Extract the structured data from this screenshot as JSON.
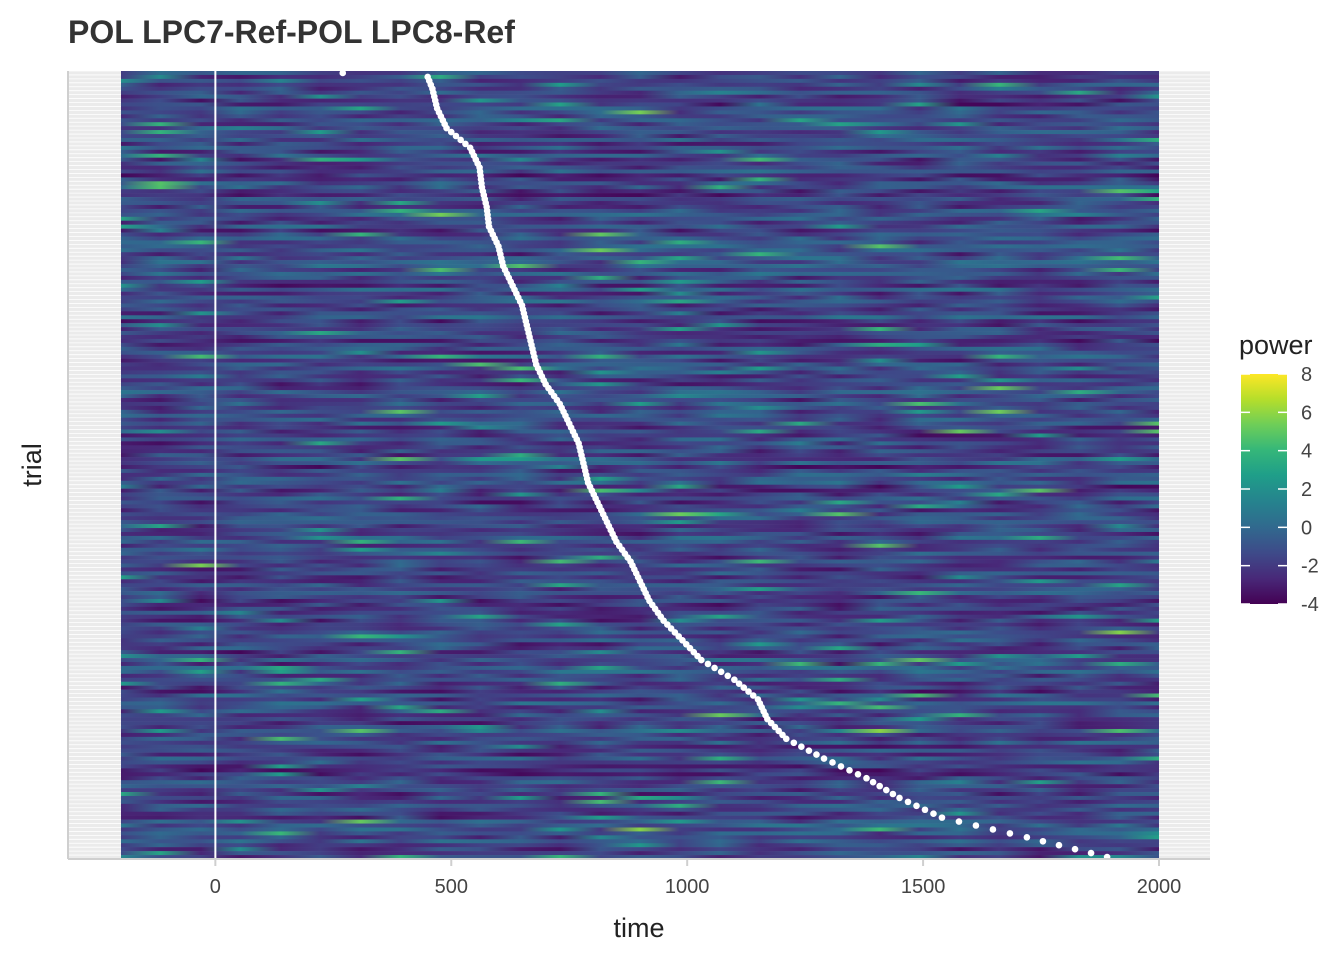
{
  "chart_data": {
    "type": "heatmap",
    "title": "POL LPC7-Ref-POL LPC8-Ref",
    "xlabel": "time",
    "ylabel": "trial",
    "x_ticks": [
      0,
      500,
      1000,
      1500,
      2000
    ],
    "x_tick_labels": [
      "0",
      "500",
      "1000",
      "1500",
      "2000"
    ],
    "xlim": [
      -200,
      2000
    ],
    "trial_count": 200,
    "y_tick_labels_shown": false,
    "colormap": "viridis",
    "legend": {
      "title": "power",
      "ticks": [
        8,
        6,
        4,
        2,
        0,
        -2,
        -4
      ],
      "tick_labels": [
        "8",
        "6",
        "4",
        "2",
        "0",
        "-2",
        "-4"
      ],
      "range": [
        -4,
        8
      ],
      "placement": "right"
    },
    "reference_line": {
      "x": 0,
      "color": "#ffffff"
    },
    "response_times": {
      "color": "#ffffff",
      "description_points": [
        [
          1,
          270
        ],
        [
          2,
          450
        ],
        [
          5,
          460
        ],
        [
          10,
          470
        ],
        [
          15,
          490
        ],
        [
          20,
          540
        ],
        [
          25,
          560
        ],
        [
          30,
          565
        ],
        [
          35,
          575
        ],
        [
          40,
          580
        ],
        [
          45,
          600
        ],
        [
          50,
          610
        ],
        [
          55,
          630
        ],
        [
          60,
          650
        ],
        [
          65,
          660
        ],
        [
          70,
          670
        ],
        [
          75,
          680
        ],
        [
          80,
          700
        ],
        [
          85,
          730
        ],
        [
          90,
          750
        ],
        [
          95,
          770
        ],
        [
          100,
          780
        ],
        [
          105,
          790
        ],
        [
          110,
          810
        ],
        [
          115,
          830
        ],
        [
          120,
          850
        ],
        [
          125,
          880
        ],
        [
          130,
          900
        ],
        [
          135,
          920
        ],
        [
          140,
          950
        ],
        [
          145,
          990
        ],
        [
          150,
          1030
        ],
        [
          155,
          1100
        ],
        [
          160,
          1150
        ],
        [
          165,
          1170
        ],
        [
          170,
          1210
        ],
        [
          175,
          1290
        ],
        [
          180,
          1380
        ],
        [
          185,
          1450
        ],
        [
          190,
          1540
        ],
        [
          195,
          1720
        ],
        [
          200,
          1890
        ]
      ]
    },
    "colors": {
      "panel_background": "#ebebeb",
      "grid": "#ffffff",
      "missing": "#7f7f7f",
      "viridis_stops": [
        "#440154",
        "#482878",
        "#3e4a89",
        "#31688e",
        "#26828e",
        "#1f9e89",
        "#35b779",
        "#6ece58",
        "#b5de2b",
        "#fde725"
      ]
    }
  }
}
